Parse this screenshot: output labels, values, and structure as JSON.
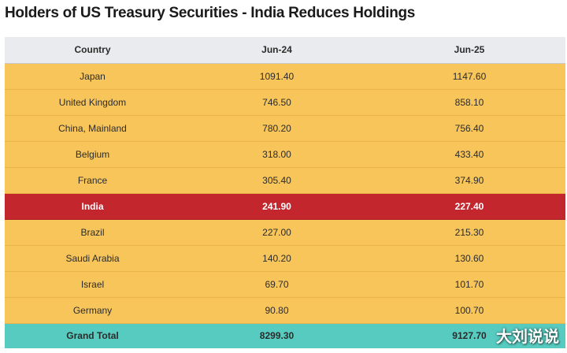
{
  "title": "Holders of US Treasury Securities - India Reduces Holdings",
  "table": {
    "headers": [
      "Country",
      "Jun-24",
      "Jun-25"
    ],
    "rows": [
      {
        "country": "Japan",
        "jun24": "1091.40",
        "jun25": "1147.60"
      },
      {
        "country": "United Kingdom",
        "jun24": "746.50",
        "jun25": "858.10"
      },
      {
        "country": "China, Mainland",
        "jun24": "780.20",
        "jun25": "756.40"
      },
      {
        "country": "Belgium",
        "jun24": "318.00",
        "jun25": "433.40"
      },
      {
        "country": "France",
        "jun24": "305.40",
        "jun25": "374.90"
      },
      {
        "country": "India",
        "jun24": "241.90",
        "jun25": "227.40",
        "highlight": true
      },
      {
        "country": "Brazil",
        "jun24": "227.00",
        "jun25": "215.30"
      },
      {
        "country": "Saudi Arabia",
        "jun24": "140.20",
        "jun25": "130.60"
      },
      {
        "country": "Israel",
        "jun24": "69.70",
        "jun25": "101.70"
      },
      {
        "country": "Germany",
        "jun24": "90.80",
        "jun25": "100.70"
      }
    ],
    "total": {
      "label": "Grand Total",
      "jun24": "8299.30",
      "jun25": "9127.70"
    }
  },
  "watermark": "大刘说说",
  "colors": {
    "header_bg": "#e9ebee",
    "row_bg": "#f7c55a",
    "highlight_bg": "#c4262e",
    "total_bg": "#58cbc0"
  }
}
